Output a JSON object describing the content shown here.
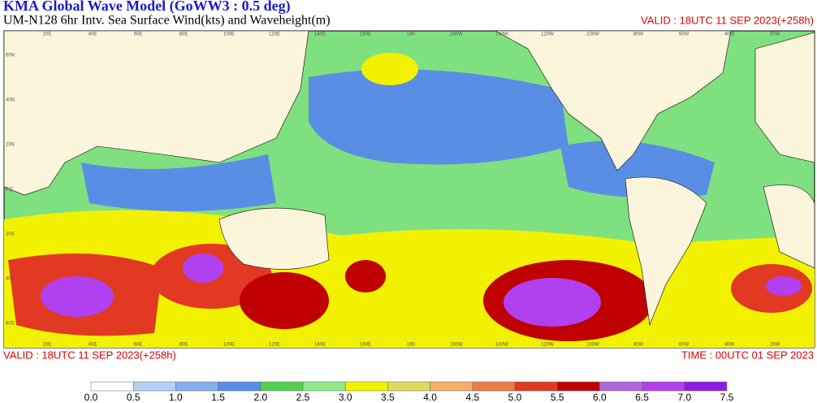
{
  "header": {
    "title": "KMA  Global Wave Model (GoWW3 : 0.5 deg)",
    "subtitle": "UM-N128  6hr Intv. Sea Surface Wind(kts) and Waveheight(m)",
    "valid": "VALID : 18UTC 11 SEP 2023(+258h)"
  },
  "footer": {
    "valid": "VALID : 18UTC 11 SEP 2023(+258h)",
    "time": "TIME : 00UTC 01 SEP 2023"
  },
  "map": {
    "lon_labels": [
      "20E",
      "40E",
      "60E",
      "80E",
      "100E",
      "120E",
      "140E",
      "160E",
      "180",
      "160W",
      "140W",
      "120W",
      "100W",
      "80W",
      "60W",
      "40W",
      "20W"
    ],
    "lat_labels": [
      "60N",
      "40N",
      "20N",
      "EQ",
      "20S",
      "40S",
      "60S"
    ]
  },
  "colorbar": {
    "levels": [
      "0.0",
      "0.5",
      "1.0",
      "1.5",
      "2.0",
      "2.5",
      "3.0",
      "3.5",
      "4.0",
      "4.5",
      "5.0",
      "5.5",
      "6.0",
      "6.5",
      "7.0",
      "7.5"
    ],
    "colors": [
      "#ffffff",
      "#b4d0f2",
      "#86b0ec",
      "#5a8ee4",
      "#52cf52",
      "#8ee88a",
      "#f2f200",
      "#dcdc5e",
      "#f4b068",
      "#f07a48",
      "#e23a22",
      "#c00000",
      "#b06adc",
      "#b040f0",
      "#8a1ee0"
    ]
  }
}
